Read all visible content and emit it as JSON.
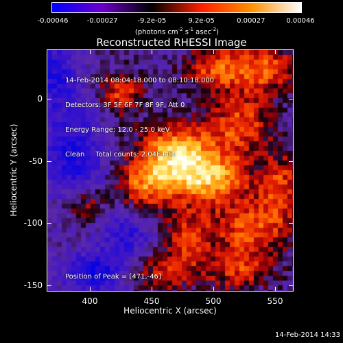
{
  "chart_data": {
    "type": "heatmap",
    "title": "Reconstructed RHESSI Image",
    "xlabel": "Heliocentric X (arcsec)",
    "ylabel": "Heliocentric Y (arcsec)",
    "x_ticks": [
      "400",
      "450",
      "500",
      "550"
    ],
    "y_ticks": [
      "0",
      "-50",
      "-100",
      "-150"
    ],
    "xlim": [
      365,
      565
    ],
    "ylim": [
      -155,
      40
    ],
    "colorbar": {
      "ticks": [
        "-0.00046",
        "-0.00027",
        "-9.2e-05",
        "9.2e-05",
        "0.00027",
        "0.00046"
      ],
      "range": [
        -0.00046,
        0.00046
      ],
      "unit": "(photons cm^-2 s^-1 asec^-2)",
      "colors": [
        "#0000ff",
        "#6a00c8",
        "#000000",
        "#ff2000",
        "#ff9000",
        "#ffffff"
      ]
    },
    "annotations": [
      "14-Feb-2014 08:04:18.000 to 08:10:18.000",
      "Detectors: 3F 5F 6F 7F 8F 9F, Att 0",
      "Energy Range: 12.0 - 25.0 keV",
      "Clean     Total counts: 2.04E+04"
    ],
    "peak_label": "Position of Peak = [471,-46]",
    "peak": [
      471,
      -46
    ],
    "blobs": [
      {
        "x": 471,
        "y": -46,
        "sx": 22,
        "sy": 18,
        "a": 1.0
      },
      {
        "x": 500,
        "y": -65,
        "sx": 20,
        "sy": 14,
        "a": 0.75
      },
      {
        "x": 445,
        "y": -70,
        "sx": 16,
        "sy": 14,
        "a": 0.6
      },
      {
        "x": 522,
        "y": -20,
        "sx": 18,
        "sy": 18,
        "a": 0.6
      },
      {
        "x": 540,
        "y": 25,
        "sx": 20,
        "sy": 14,
        "a": 0.65
      },
      {
        "x": 500,
        "y": 25,
        "sx": 16,
        "sy": 12,
        "a": 0.55
      },
      {
        "x": 425,
        "y": 5,
        "sx": 12,
        "sy": 12,
        "a": 0.55
      },
      {
        "x": 530,
        "y": -105,
        "sx": 22,
        "sy": 18,
        "a": 0.6
      },
      {
        "x": 480,
        "y": -110,
        "sx": 14,
        "sy": 16,
        "a": 0.5
      },
      {
        "x": 460,
        "y": -140,
        "sx": 20,
        "sy": 12,
        "a": 0.45
      },
      {
        "x": 555,
        "y": -70,
        "sx": 12,
        "sy": 20,
        "a": 0.55
      },
      {
        "x": 395,
        "y": -85,
        "sx": 12,
        "sy": 10,
        "a": 0.45
      },
      {
        "x": 520,
        "y": -140,
        "sx": 18,
        "sy": 12,
        "a": 0.45
      }
    ],
    "negatives": [
      {
        "x": 385,
        "y": -45,
        "sx": 18,
        "sy": 28,
        "a": 0.55
      },
      {
        "x": 405,
        "y": -140,
        "sx": 18,
        "sy": 12,
        "a": 0.65
      },
      {
        "x": 370,
        "y": 20,
        "sx": 14,
        "sy": 20,
        "a": 0.5
      },
      {
        "x": 430,
        "y": -110,
        "sx": 14,
        "sy": 14,
        "a": 0.45
      }
    ]
  },
  "timestamp": "14-Feb-2014 14:33"
}
